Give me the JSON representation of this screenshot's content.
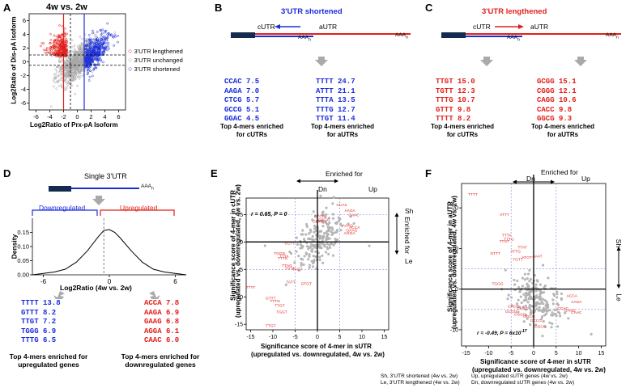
{
  "colors": {
    "blue": "#1a2ddb",
    "red": "#e0201b",
    "gray": "#a8a8a8",
    "navy": "#142a4e"
  },
  "panelA": {
    "label": "A",
    "title": "4w vs. 2w",
    "xlabel": "Log2Ratio of Prx-pA Isoform",
    "ylabel": "Log2Ratio of Dis-pA Isoform",
    "xticks": [
      "-6",
      "-4",
      "-2",
      "0",
      "2",
      "4",
      "6"
    ],
    "yticks": [
      "6",
      "4",
      "2",
      "0",
      "-2",
      "-4",
      "-6"
    ],
    "legend": [
      "3'UTR lengthened",
      "3'UTR unchanged",
      "3'UTR shortened"
    ]
  },
  "panelB": {
    "label": "B",
    "title": "3'UTR shortened",
    "cutr": "cUTR",
    "autr": "aUTR",
    "aaa": "AAA",
    "left": [
      [
        "CCAC",
        "7.5"
      ],
      [
        "AAGA",
        "7.0"
      ],
      [
        "CTCG",
        "5.7"
      ],
      [
        "GCCG",
        "5.1"
      ],
      [
        "GGAC",
        "4.5"
      ]
    ],
    "right": [
      [
        "TTTT",
        "24.7"
      ],
      [
        "ATTT",
        "21.1"
      ],
      [
        "TTTA",
        "13.5"
      ],
      [
        "TTTG",
        "12.7"
      ],
      [
        "TTGT",
        "11.4"
      ]
    ],
    "cap_left": "Top 4-mers enriched for cUTRs",
    "cap_right": "Top 4-mers enriched for aUTRs"
  },
  "panelC": {
    "label": "C",
    "title": "3'UTR lengthened",
    "cutr": "cUTR",
    "autr": "aUTR",
    "aaa": "AAA",
    "left": [
      [
        "TTGT",
        "15.0"
      ],
      [
        "TGTT",
        "12.3"
      ],
      [
        "TTTG",
        "10.7"
      ],
      [
        "GTTT",
        "9.8"
      ],
      [
        "TTTT",
        "8.2"
      ]
    ],
    "right": [
      [
        "GCGG",
        "15.1"
      ],
      [
        "CGGG",
        "12.1"
      ],
      [
        "CAGG",
        "10.6"
      ],
      [
        "CACC",
        "9.8"
      ],
      [
        "GGCG",
        "9.3"
      ]
    ],
    "cap_left": "Top 4-mers enriched for cUTRs",
    "cap_right": "Top 4-mers enriched for aUTRs"
  },
  "panelD": {
    "label": "D",
    "title": "Single 3'UTR",
    "aaa": "AAA",
    "down": "Downregulated",
    "up": "Upregulated",
    "ylabel": "Density",
    "xlabel": "Log2Ratio (4w vs. 2w)",
    "yticks": [
      "0.15",
      "0.10",
      "0.05",
      "0.00"
    ],
    "xticks": [
      "-6",
      "0",
      "6"
    ],
    "left": [
      [
        "TTTT",
        "13.8"
      ],
      [
        "GTTT",
        "8.2"
      ],
      [
        "TTGT",
        "7.2"
      ],
      [
        "TGGG",
        "6.9"
      ],
      [
        "TTTG",
        "6.5"
      ]
    ],
    "right": [
      [
        "ACCA",
        "7.8"
      ],
      [
        "AAGA",
        "6.9"
      ],
      [
        "GAAG",
        "6.8"
      ],
      [
        "AGGA",
        "6.1"
      ],
      [
        "CAAC",
        "6.0"
      ]
    ],
    "cap_left": "Top 4-mers enriched for upregulated genes",
    "cap_right": "Top 4-mers enriched for downregulated genes"
  },
  "panelE": {
    "label": "E",
    "enriched": "Enriched for",
    "dn": "Dn",
    "up": "Up",
    "sh": "Sh",
    "le": "Le",
    "enriched_side": "Enriched for",
    "stat": "r = 0.65, P = 0",
    "ylabel1": "Significance score of 4-mer in cUTR",
    "ylabel2": "(upregulated vs. downregulated, 4w vs. 2w)",
    "xlabel1": "Significance score of 4-mer in sUTR",
    "xlabel2": "(upregulated  vs. downregulated, 4w vs. 2w)",
    "xticks": [
      "-15",
      "-10",
      "-5",
      "0",
      "5",
      "10",
      "15"
    ],
    "yticks": [
      "5",
      "0",
      "-5",
      "-10",
      "-15"
    ]
  },
  "panelF": {
    "label": "F",
    "enriched": "Enriched for",
    "dn": "Dn",
    "up": "Up",
    "sh": "Sh",
    "le": "Le",
    "enriched_side": "Enriched for",
    "stat": "r = -0.49, P = 6x10",
    "stat_exp": "-17",
    "ylabel1": "Significance score of 4-mer in aUTR",
    "ylabel2": "(upregulated vs. downregulated, 4w vs. 2w)",
    "xlabel1": "Significance score of 4-mer in sUTR",
    "xlabel2": "(upregulated vs. downregulated, 4w vs. 2w)",
    "xticks": [
      "-15",
      "-10",
      "-5",
      "0",
      "5",
      "10",
      "15"
    ],
    "yticks": [
      "20",
      "10",
      "0",
      "-10"
    ]
  },
  "footer": {
    "l1": "Sh, 3'UTR shortened (4w vs. 2w)",
    "l2": "Le, 3'UTR lengthened (4w vs. 2w)",
    "r1": "Up, upregulated sUTR genes (4w vs. 2w)",
    "r2": "Dn, downregulated sUTR genes (4w vs. 2w)"
  },
  "chart_data": [
    {
      "type": "scatter",
      "panel": "A",
      "title": "4w vs. 2w",
      "xlabel": "Log2Ratio of Prx-pA Isoform",
      "ylabel": "Log2Ratio of Dis-pA Isoform",
      "xlim": [
        -7,
        7
      ],
      "ylim": [
        -7,
        7
      ],
      "series": [
        {
          "name": "3'UTR lengthened"
        },
        {
          "name": "3'UTR unchanged"
        },
        {
          "name": "3'UTR shortened"
        }
      ],
      "reference_lines": {
        "vertical": [
          -2,
          -1,
          0,
          1
        ],
        "horizontal": [
          1,
          0,
          -1
        ]
      }
    },
    {
      "type": "line",
      "panel": "D",
      "title": "Single 3'UTR",
      "xlabel": "Log2Ratio (4w vs. 2w)",
      "ylabel": "Density",
      "xlim": [
        -7,
        7
      ],
      "ylim": [
        0,
        0.2
      ],
      "x": [
        -7,
        -5,
        -4,
        -3,
        -2,
        -1,
        -0.5,
        0,
        0.5,
        1,
        2,
        3,
        4,
        5,
        7
      ],
      "y": [
        0.0,
        0.01,
        0.02,
        0.045,
        0.085,
        0.135,
        0.157,
        0.16,
        0.15,
        0.13,
        0.085,
        0.045,
        0.02,
        0.01,
        0.0
      ],
      "threshold_line": -0.5
    },
    {
      "type": "scatter",
      "panel": "E",
      "xlabel": "Significance score of 4-mer in sUTR",
      "ylabel": "Significance score of 4-mer in cUTR",
      "xlim": [
        -16,
        16
      ],
      "ylim": [
        -16,
        8
      ],
      "labeled_points": [
        {
          "label": "CCAC",
          "x": 5.5,
          "y": 6.5
        },
        {
          "label": "AAGA",
          "x": 7.3,
          "y": 5.5
        },
        {
          "label": "CAAC",
          "x": 8.2,
          "y": 4.7
        },
        {
          "label": "CTCG",
          "x": 0.5,
          "y": 4.5
        },
        {
          "label": "GCCG",
          "x": 1.5,
          "y": 3.8
        },
        {
          "label": "GGAC",
          "x": 0.2,
          "y": 3.5
        },
        {
          "label": "AAAG",
          "x": 6.8,
          "y": 2.8
        },
        {
          "label": "ACCA",
          "x": 8.3,
          "y": 2.4
        },
        {
          "label": "GAAG",
          "x": 7.7,
          "y": 1.9
        },
        {
          "label": "AGGA",
          "x": 7.2,
          "y": 1.4
        },
        {
          "label": "CCTT",
          "x": -6.2,
          "y": -0.5
        },
        {
          "label": "TGGG",
          "x": -8.5,
          "y": -2.3
        },
        {
          "label": "TTTA",
          "x": -7.5,
          "y": -2.8
        },
        {
          "label": "TTTG",
          "x": -7.8,
          "y": -3.2
        },
        {
          "label": "TTAG",
          "x": -6.8,
          "y": -4.5
        },
        {
          "label": "TGTA",
          "x": -6.2,
          "y": -5.0
        },
        {
          "label": "TAGT",
          "x": -4.5,
          "y": -5.2
        },
        {
          "label": "TATT",
          "x": -6.0,
          "y": -7.5
        },
        {
          "label": "GTGT",
          "x": -2.5,
          "y": -7.8
        },
        {
          "label": "TTTT",
          "x": -15.0,
          "y": -8.5
        },
        {
          "label": "GTTT",
          "x": -10.5,
          "y": -10.5
        },
        {
          "label": "TTTG",
          "x": -9.5,
          "y": -11.0
        },
        {
          "label": "TTGT",
          "x": -8.5,
          "y": -11.8
        },
        {
          "label": "TGGT",
          "x": -8.0,
          "y": -13.0
        },
        {
          "label": "TTGT",
          "x": -10.5,
          "y": -15.5
        }
      ]
    },
    {
      "type": "scatter",
      "panel": "F",
      "xlabel": "Significance score of 4-mer in sUTR",
      "ylabel": "Significance score of 4-mer in aUTR",
      "xlim": [
        -16,
        16
      ],
      "ylim": [
        -14,
        26
      ],
      "labeled_points": [
        {
          "label": "TTTT",
          "x": -13.5,
          "y": 23.0
        },
        {
          "label": "ATTT",
          "x": -6.5,
          "y": 18.0
        },
        {
          "label": "TTTA",
          "x": -6.0,
          "y": 13.0
        },
        {
          "label": "TTTG",
          "x": -5.5,
          "y": 12.0
        },
        {
          "label": "TTGT",
          "x": -6.5,
          "y": 11.5
        },
        {
          "label": "TTAT",
          "x": -2.5,
          "y": 10.0
        },
        {
          "label": "ATTG",
          "x": -4.0,
          "y": 9.0
        },
        {
          "label": "GTTT",
          "x": -8.5,
          "y": 8.5
        },
        {
          "label": "ATGT",
          "x": -1.5,
          "y": 7.5
        },
        {
          "label": "TGTT",
          "x": -3.5,
          "y": 7.0
        },
        {
          "label": "AAAT",
          "x": 0.8,
          "y": 7.8
        },
        {
          "label": "TGGG",
          "x": -8.0,
          "y": 1.0
        },
        {
          "label": "ACCA",
          "x": 8.5,
          "y": -2.0
        },
        {
          "label": "AAGA",
          "x": 9.5,
          "y": -3.5
        },
        {
          "label": "CCAC",
          "x": 6.5,
          "y": -5.0
        },
        {
          "label": "GAAG",
          "x": 8.0,
          "y": -5.5
        },
        {
          "label": "CAAC",
          "x": 9.5,
          "y": -6.0
        },
        {
          "label": "GCGG",
          "x": -5.0,
          "y": -5.8
        },
        {
          "label": "CGGG",
          "x": -3.0,
          "y": -6.5
        },
        {
          "label": "GGCG",
          "x": -1.0,
          "y": -7.0
        },
        {
          "label": "CAGG",
          "x": -2.5,
          "y": -5.0
        },
        {
          "label": "CACC",
          "x": -4.5,
          "y": -4.5
        },
        {
          "label": "GCCG",
          "x": 0.5,
          "y": -8.0
        },
        {
          "label": "CGCG",
          "x": 1.5,
          "y": -9.5
        }
      ]
    }
  ]
}
